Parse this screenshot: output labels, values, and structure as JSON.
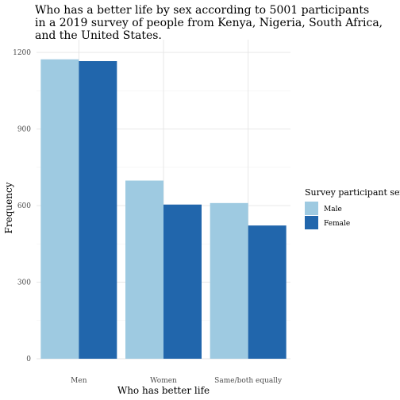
{
  "chart_data": {
    "type": "bar",
    "title_lines": [
      "Who has a better life by sex according to 5001 participants",
      "in a 2019 survey of people from Kenya, Nigeria, South Africa,",
      "and the United States."
    ],
    "xlabel": "Who has better life",
    "ylabel": "Frequency",
    "categories": [
      "Men",
      "Women",
      "Same/both equally"
    ],
    "series": [
      {
        "name": "Male",
        "color": "#9ecae1",
        "values": [
          1173,
          698,
          610
        ]
      },
      {
        "name": "Female",
        "color": "#2166ac",
        "values": [
          1166,
          604,
          522
        ]
      }
    ],
    "ylim": [
      0,
      1250
    ],
    "yticks": [
      0,
      300,
      600,
      900,
      1200
    ],
    "grid": true,
    "legend": {
      "title": "Survey participant sex",
      "position": "right"
    }
  }
}
